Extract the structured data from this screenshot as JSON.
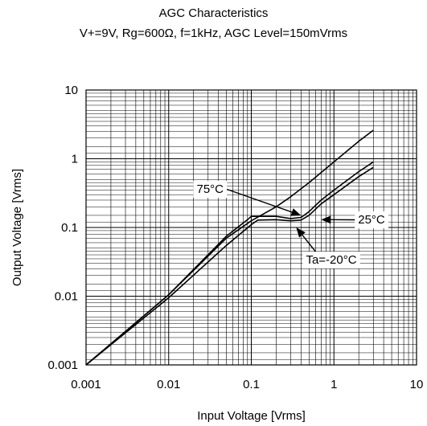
{
  "chart_data": {
    "type": "line",
    "title": "AGC Characteristics",
    "subtitle": "V+=9V, Rg=600Ω, f=1kHz, AGC Level=150mVrms",
    "xlabel": "Input Voltage [Vrms]",
    "ylabel": "Output Voltage [Vrms]",
    "xscale": "log",
    "yscale": "log",
    "xlim": [
      0.001,
      10
    ],
    "ylim": [
      0.001,
      10
    ],
    "x_ticks": [
      "0.001",
      "0.01",
      "0.1",
      "1",
      "10"
    ],
    "y_ticks": [
      "0.001",
      "0.01",
      "0.1",
      "1",
      "10"
    ],
    "grid": true,
    "series": [
      {
        "name": "75°C",
        "x": [
          0.001,
          0.01,
          0.05,
          0.1,
          0.2,
          0.3,
          0.5,
          1,
          2,
          3
        ],
        "y": [
          0.001,
          0.0105,
          0.07,
          0.125,
          0.2,
          0.28,
          0.45,
          0.9,
          1.8,
          2.6
        ]
      },
      {
        "name": "25°C",
        "x": [
          0.001,
          0.01,
          0.05,
          0.09,
          0.1,
          0.2,
          0.3,
          0.4,
          0.5,
          0.7,
          1,
          2,
          3
        ],
        "y": [
          0.001,
          0.0105,
          0.075,
          0.13,
          0.145,
          0.145,
          0.135,
          0.14,
          0.17,
          0.25,
          0.35,
          0.65,
          0.9
        ]
      },
      {
        "name": "Ta=-20°C",
        "x": [
          0.001,
          0.01,
          0.05,
          0.1,
          0.12,
          0.2,
          0.3,
          0.4,
          0.5,
          0.7,
          1,
          2,
          3
        ],
        "y": [
          0.001,
          0.0095,
          0.055,
          0.11,
          0.128,
          0.13,
          0.125,
          0.128,
          0.15,
          0.22,
          0.3,
          0.55,
          0.75
        ]
      }
    ],
    "annotations": [
      {
        "label": "75°C",
        "target": [
          0.4,
          0.15
        ]
      },
      {
        "label": "25°C",
        "target": [
          0.7,
          0.13
        ]
      },
      {
        "label": "Ta=-20°C",
        "target": [
          0.35,
          0.1
        ]
      }
    ]
  }
}
